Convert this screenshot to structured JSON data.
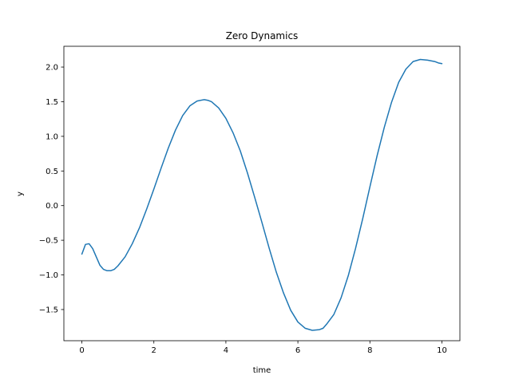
{
  "chart_data": {
    "type": "line",
    "title": "Zero Dynamics",
    "xlabel": "time",
    "ylabel": "y",
    "xlim": [
      -0.5,
      10.5
    ],
    "ylim": [
      -1.95,
      2.3
    ],
    "xticks": [
      0,
      2,
      4,
      6,
      8,
      10
    ],
    "yticks": [
      -1.5,
      -1.0,
      -0.5,
      0.0,
      0.5,
      1.0,
      1.5,
      2.0
    ],
    "ytick_labels": [
      "−1.5",
      "−1.0",
      "−0.5",
      "0.0",
      "0.5",
      "1.0",
      "1.5",
      "2.0"
    ],
    "xtick_labels": [
      "0",
      "2",
      "4",
      "6",
      "8",
      "10"
    ],
    "grid": false,
    "color": "#1f77b4",
    "series": [
      {
        "x": [
          0.0,
          0.1,
          0.2,
          0.3,
          0.4,
          0.5,
          0.6,
          0.7,
          0.8,
          0.9,
          1.0,
          1.2,
          1.4,
          1.6,
          1.8,
          2.0,
          2.2,
          2.4,
          2.6,
          2.8,
          3.0,
          3.2,
          3.4,
          3.5,
          3.6,
          3.8,
          4.0,
          4.2,
          4.4,
          4.6,
          4.8,
          5.0,
          5.2,
          5.4,
          5.6,
          5.8,
          6.0,
          6.2,
          6.4,
          6.6,
          6.7,
          6.8,
          7.0,
          7.2,
          7.4,
          7.6,
          7.8,
          8.0,
          8.2,
          8.4,
          8.6,
          8.8,
          9.0,
          9.2,
          9.4,
          9.6,
          9.7,
          9.8,
          9.9,
          10.0
        ],
        "y": [
          -0.7,
          -0.56,
          -0.55,
          -0.62,
          -0.74,
          -0.86,
          -0.92,
          -0.94,
          -0.94,
          -0.92,
          -0.87,
          -0.74,
          -0.55,
          -0.32,
          -0.05,
          0.24,
          0.54,
          0.83,
          1.09,
          1.3,
          1.44,
          1.51,
          1.53,
          1.52,
          1.5,
          1.41,
          1.26,
          1.05,
          0.79,
          0.47,
          0.12,
          -0.24,
          -0.61,
          -0.96,
          -1.26,
          -1.51,
          -1.68,
          -1.77,
          -1.8,
          -1.79,
          -1.77,
          -1.71,
          -1.57,
          -1.33,
          -1.01,
          -0.62,
          -0.19,
          0.27,
          0.72,
          1.13,
          1.49,
          1.78,
          1.97,
          2.08,
          2.11,
          2.1,
          2.09,
          2.08,
          2.06,
          2.05
        ]
      }
    ]
  }
}
